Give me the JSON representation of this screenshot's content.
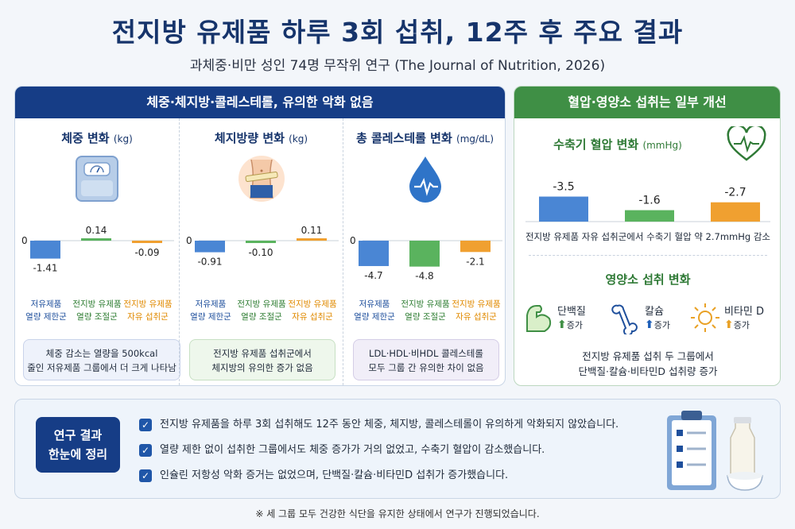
{
  "header": {
    "title": "전지방 유제품 하루 3회 섭취, 12주 후 주요 결과",
    "subtitle": "과체중·비만 성인 74명 무작위 연구 (The Journal of Nutrition, 2026)"
  },
  "left_panel": {
    "header": "체중·체지방·콜레스테롤, 유의한 악화 없음",
    "zero_label": "0",
    "groups": [
      {
        "line1": "저유제품",
        "line2": "열량 제한군",
        "color": "#1e4f9c"
      },
      {
        "line1": "전지방 유제품",
        "line2": "열량 조절군",
        "color": "#2e7d32"
      },
      {
        "line1": "전지방 유제품",
        "line2": "자유 섭취군",
        "color": "#e08a00"
      }
    ],
    "bar_colors": [
      "#4a86d4",
      "#5ab35e",
      "#f0a030"
    ],
    "charts": [
      {
        "title": "체중 변화",
        "unit": "(kg)",
        "icon": "scale-icon",
        "values": [
          -1.41,
          0.14,
          -0.09
        ],
        "labels": [
          "-1.41",
          "0.14",
          "-0.09"
        ],
        "note": [
          "체중 감소는 열량을 500kcal",
          "줄인 저유제품 그룹에서 더 크게 나타남"
        ]
      },
      {
        "title": "체지방량 변화",
        "unit": "(kg)",
        "icon": "waist-icon",
        "values": [
          -0.91,
          -0.1,
          0.11
        ],
        "labels": [
          "-0.91",
          "-0.10",
          "0.11"
        ],
        "note": [
          "전지방 유제품 섭취군에서",
          "체지방의 유의한 증가 없음"
        ]
      },
      {
        "title": "총 콜레스테롤 변화",
        "unit": "(mg/dL)",
        "icon": "blood-drop-icon",
        "values": [
          -4.7,
          -4.8,
          -2.1
        ],
        "labels": [
          "-4.7",
          "-4.8",
          "-2.1"
        ],
        "note": [
          "LDL·HDL·비HDL 콜레스테롤",
          "모두 그룹 간 유의한 차이 없음"
        ]
      }
    ]
  },
  "right_panel": {
    "header": "혈압·영양소 섭취는 일부 개선",
    "bp_title": "수축기 혈압 변화",
    "bp_unit": "(mmHg)",
    "bp_values": [
      -3.5,
      -1.6,
      -2.7
    ],
    "bp_labels": [
      "-3.5",
      "-1.6",
      "-2.7"
    ],
    "bp_summary": "전지방 유제품 자유 섭취군에서 수축기 혈압 약 2.7mmHg 감소",
    "nutrient_title": "영양소 섭취 변화",
    "nutrients": [
      {
        "label": "단백질",
        "change": "증가",
        "icon": "muscle-arm-icon"
      },
      {
        "label": "칼슘",
        "change": "증가",
        "icon": "bone-icon"
      },
      {
        "label": "비타민 D",
        "change": "증가",
        "icon": "sun-icon"
      }
    ],
    "nutrient_summary": [
      "전지방 유제품 섭취 두 그룹에서",
      "단백질·칼슘·비타민D 섭취량 증가"
    ]
  },
  "summary": {
    "box": [
      "연구 결과",
      "한눈에 정리"
    ],
    "items": [
      "전지방 유제품을 하루 3회 섭취해도 12주 동안 체중, 체지방, 콜레스테롤이 유의하게 악화되지 않았습니다.",
      "열량 제한 없이 섭취한 그룹에서도 체중 증가가 거의 없었고, 수축기 혈압이 감소했습니다.",
      "인슐린 저항성 악화 증거는 없었으며, 단백질·칼슘·비타민D 섭취가 증가했습니다."
    ]
  },
  "footnote": "※ 세 그룹 모두 건강한 식단을 유지한 상태에서 연구가 진행되었습니다."
}
